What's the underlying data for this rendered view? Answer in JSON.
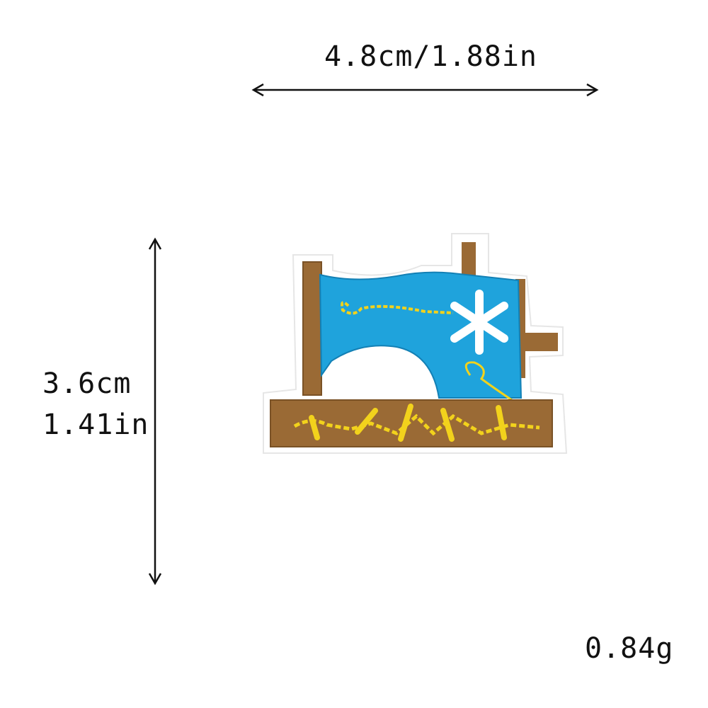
{
  "dimensions": {
    "width_label": "4.8cm/1.88in",
    "height_cm": "3.6cm",
    "height_in": "1.41in",
    "weight": "0.84g"
  },
  "product": {
    "colors": {
      "machine_body": "#1fa3dc",
      "wood": "#9a6a35",
      "thread": "#f2d21c",
      "flower": "#ffffff",
      "patch_border": "#ffffff"
    }
  }
}
